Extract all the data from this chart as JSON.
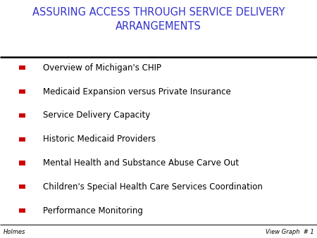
{
  "title_line1": "ASSURING ACCESS THROUGH SERVICE DELIVERY",
  "title_line2": "ARRANGEMENTS",
  "title_color": "#3333CC",
  "title_fontsize": 10.5,
  "background_color": "#FFFFFF",
  "bullet_color": "#CC0000",
  "bullet_text_color": "#000000",
  "bullet_fontsize": 8.5,
  "items": [
    "Overview of Michigan's CHIP",
    "Medicaid Expansion versus Private Insurance",
    "Service Delivery Capacity",
    "Historic Medicaid Providers",
    "Mental Health and Substance Abuse Carve Out",
    "Children's Special Health Care Services Coordination",
    "Performance Monitoring"
  ],
  "footer_left": "Holmes",
  "footer_right": "View Graph  # 1",
  "footer_fontsize": 6,
  "footer_color": "#000000",
  "separator_color": "#000000",
  "separator_linewidth": 1.8
}
